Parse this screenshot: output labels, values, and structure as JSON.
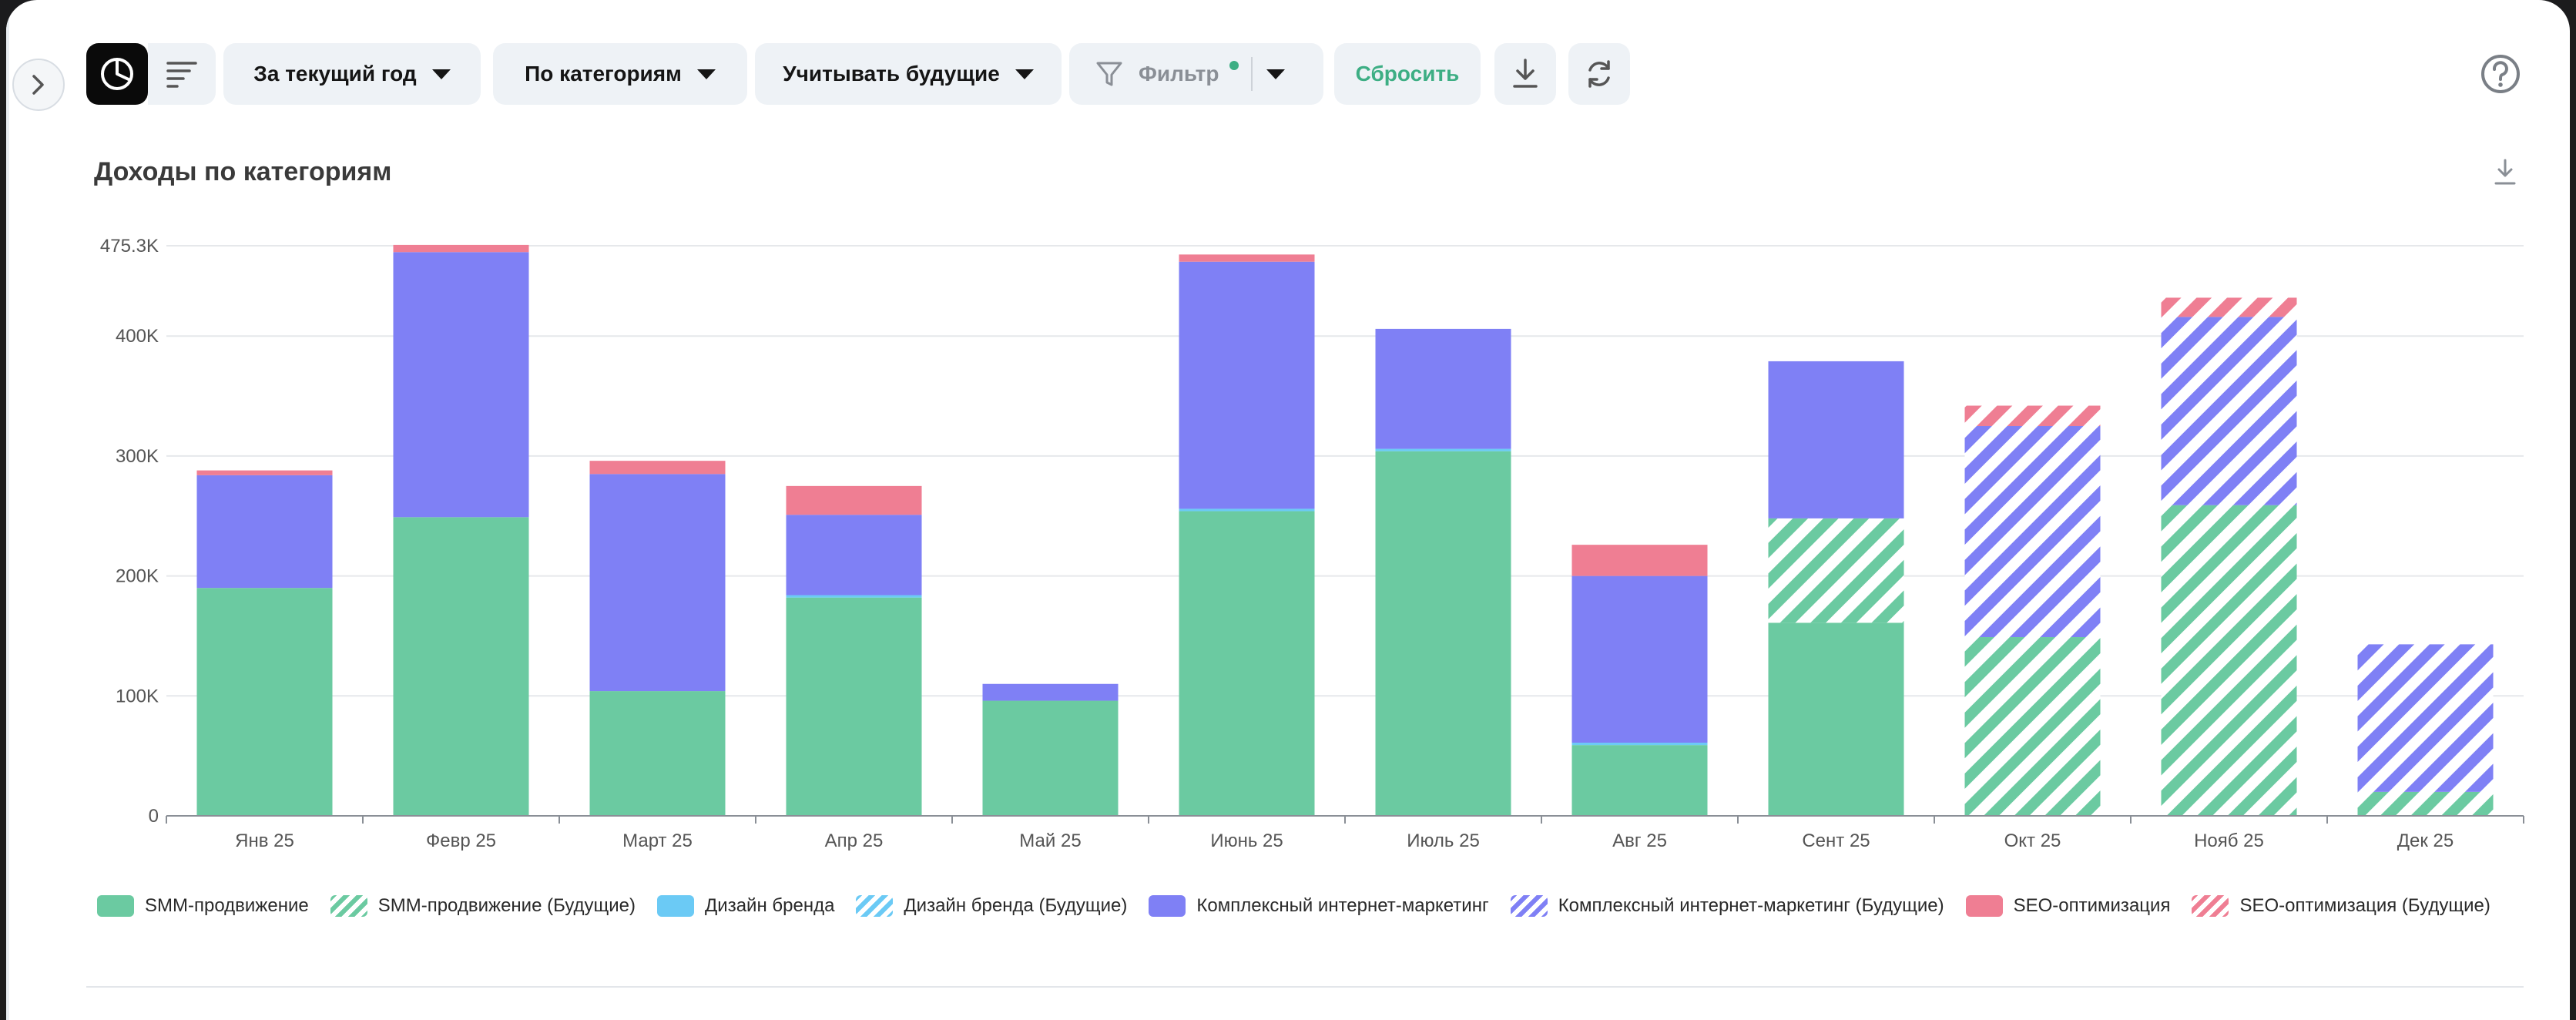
{
  "toolbar": {
    "period_label": "За текущий год",
    "grouping_label": "По категориям",
    "future_label": "Учитывать будущие",
    "filter_label": "Фильтр",
    "reset_label": "Сбросить"
  },
  "icons": {
    "expand": "chevron-right-icon",
    "view": "pie-chart-icon",
    "list": "list-icon",
    "filter": "funnel-icon",
    "download": "download-icon",
    "refresh": "refresh-icon",
    "help": "question-circle-icon"
  },
  "colors": {
    "smm": "#6bcaa1",
    "design": "#6bcaf5",
    "complex": "#7f80f5",
    "seo": "#ef7e93",
    "reset_text": "#3dae84",
    "filter_dot": "#3dae84"
  },
  "chart": {
    "title": "Доходы по категориям"
  },
  "chart_data": {
    "type": "bar",
    "stacked": true,
    "title": "Доходы по категориям",
    "xlabel": "",
    "ylabel": "",
    "ylim": [
      0,
      475300
    ],
    "y_ticks": [
      0,
      100000,
      200000,
      300000,
      400000,
      475300
    ],
    "y_tick_labels": [
      "0",
      "100K",
      "200K",
      "300K",
      "400K",
      "475.3K"
    ],
    "grid": true,
    "legend_position": "bottom",
    "categories": [
      "Янв 25",
      "Февр 25",
      "Март 25",
      "Апр 25",
      "Май 25",
      "Июнь 25",
      "Июль 25",
      "Авг 25",
      "Сент 25",
      "Окт 25",
      "Нояб 25",
      "Дек 25"
    ],
    "series": [
      {
        "name": "SMM-продвижение",
        "key": "smm",
        "future": false,
        "values": [
          190000,
          249000,
          104000,
          182000,
          96000,
          254000,
          304000,
          59000,
          161000,
          0,
          0,
          0
        ]
      },
      {
        "name": "SMM-продвижение (Будущие)",
        "key": "smm",
        "future": true,
        "values": [
          0,
          0,
          0,
          0,
          0,
          0,
          0,
          0,
          87000,
          149000,
          259000,
          20000
        ]
      },
      {
        "name": "Дизайн бренда",
        "key": "design",
        "future": false,
        "values": [
          0,
          0,
          0,
          2000,
          0,
          2000,
          2000,
          2000,
          0,
          0,
          0,
          0
        ]
      },
      {
        "name": "Дизайн бренда (Будущие)",
        "key": "design",
        "future": true,
        "values": [
          0,
          0,
          0,
          0,
          0,
          0,
          0,
          0,
          0,
          0,
          0,
          0
        ]
      },
      {
        "name": "Комплексный интернет-маркетинг",
        "key": "complex",
        "future": false,
        "values": [
          94000,
          221000,
          181000,
          67000,
          14000,
          206000,
          100000,
          139000,
          131000,
          0,
          0,
          0
        ]
      },
      {
        "name": "Комплексный интернет-маркетинг (Будущие)",
        "key": "complex",
        "future": true,
        "values": [
          0,
          0,
          0,
          0,
          0,
          0,
          0,
          0,
          0,
          176000,
          157000,
          123000
        ]
      },
      {
        "name": "SEO-оптимизация",
        "key": "seo",
        "future": false,
        "values": [
          4000,
          6000,
          11000,
          24000,
          0,
          6000,
          0,
          26000,
          0,
          0,
          0,
          0
        ]
      },
      {
        "name": "SEO-оптимизация (Будущие)",
        "key": "seo",
        "future": true,
        "values": [
          0,
          0,
          0,
          0,
          0,
          0,
          0,
          0,
          0,
          17000,
          16000,
          0
        ]
      }
    ]
  }
}
